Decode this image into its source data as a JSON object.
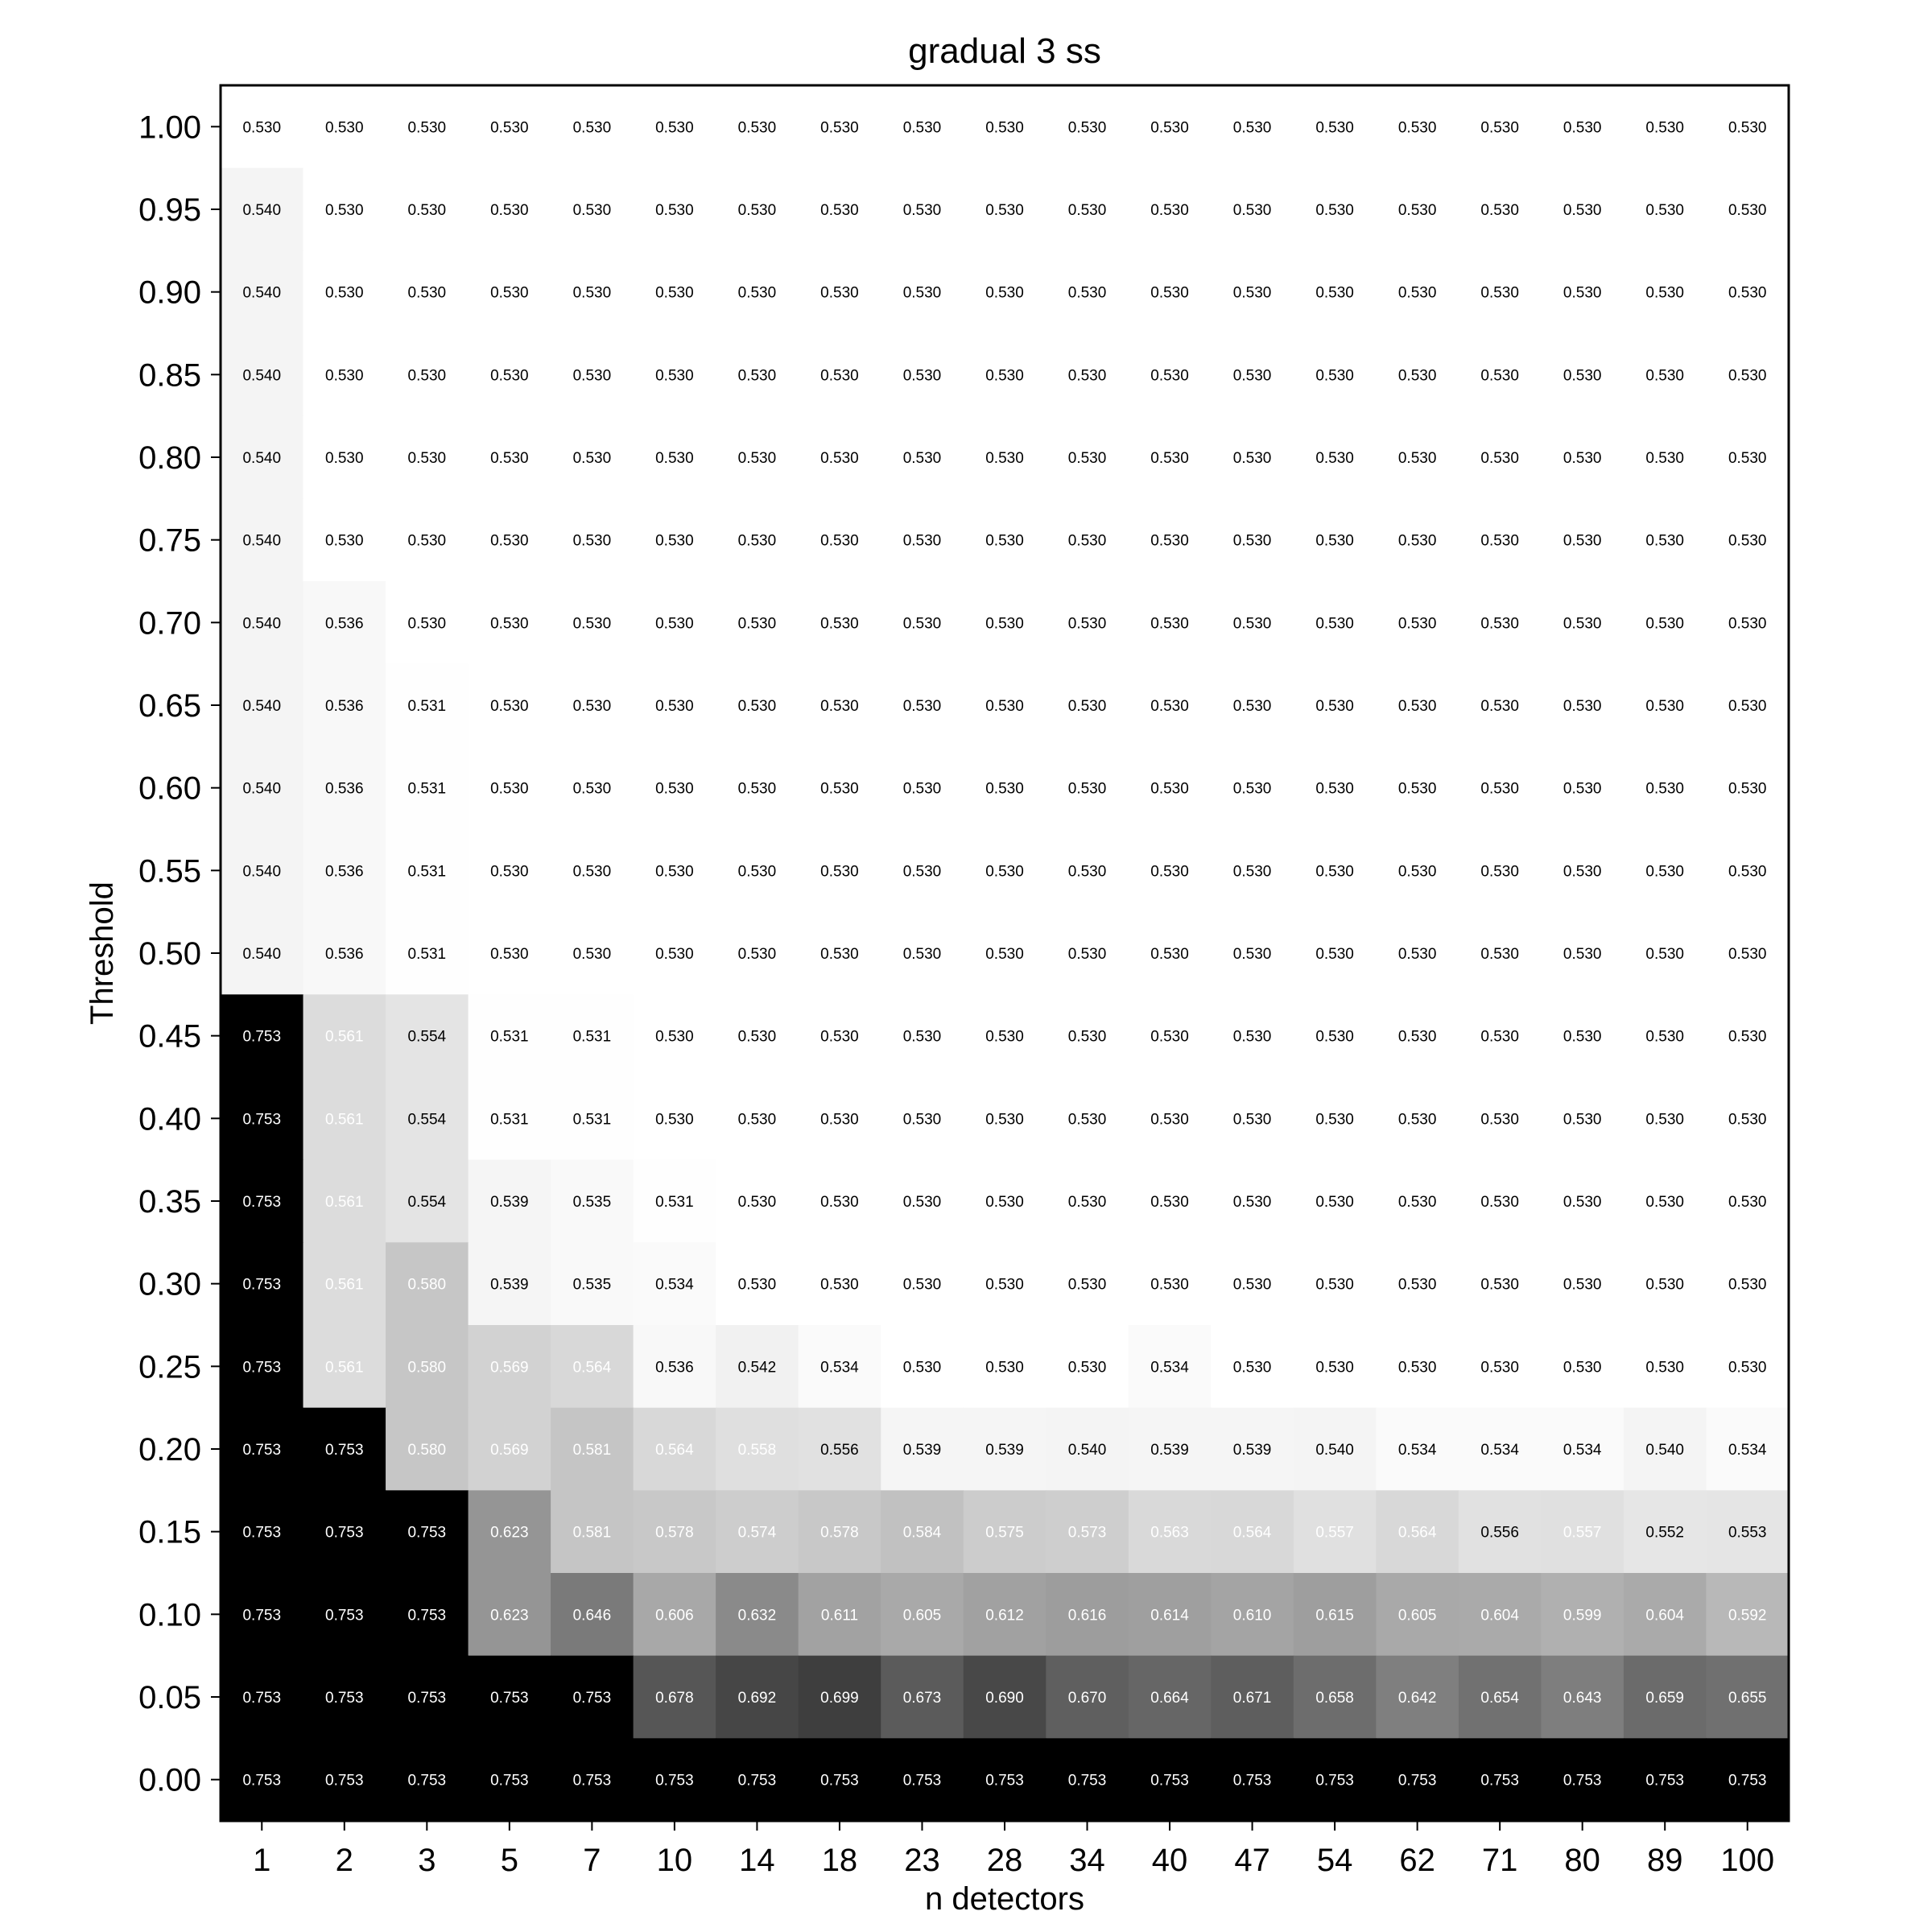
{
  "chart_data": {
    "type": "heatmap",
    "title": "gradual 3 ss",
    "xlabel": "n detectors",
    "ylabel": "Threshold",
    "x": [
      "1",
      "2",
      "3",
      "5",
      "7",
      "10",
      "14",
      "18",
      "23",
      "28",
      "34",
      "40",
      "47",
      "54",
      "62",
      "71",
      "80",
      "89",
      "100"
    ],
    "y": [
      "1.00",
      "0.95",
      "0.90",
      "0.85",
      "0.80",
      "0.75",
      "0.70",
      "0.65",
      "0.60",
      "0.55",
      "0.50",
      "0.45",
      "0.40",
      "0.35",
      "0.30",
      "0.25",
      "0.20",
      "0.15",
      "0.10",
      "0.05",
      "0.00"
    ],
    "values": [
      [
        0.53,
        0.53,
        0.53,
        0.53,
        0.53,
        0.53,
        0.53,
        0.53,
        0.53,
        0.53,
        0.53,
        0.53,
        0.53,
        0.53,
        0.53,
        0.53,
        0.53,
        0.53,
        0.53
      ],
      [
        0.54,
        0.53,
        0.53,
        0.53,
        0.53,
        0.53,
        0.53,
        0.53,
        0.53,
        0.53,
        0.53,
        0.53,
        0.53,
        0.53,
        0.53,
        0.53,
        0.53,
        0.53,
        0.53
      ],
      [
        0.54,
        0.53,
        0.53,
        0.53,
        0.53,
        0.53,
        0.53,
        0.53,
        0.53,
        0.53,
        0.53,
        0.53,
        0.53,
        0.53,
        0.53,
        0.53,
        0.53,
        0.53,
        0.53
      ],
      [
        0.54,
        0.53,
        0.53,
        0.53,
        0.53,
        0.53,
        0.53,
        0.53,
        0.53,
        0.53,
        0.53,
        0.53,
        0.53,
        0.53,
        0.53,
        0.53,
        0.53,
        0.53,
        0.53
      ],
      [
        0.54,
        0.53,
        0.53,
        0.53,
        0.53,
        0.53,
        0.53,
        0.53,
        0.53,
        0.53,
        0.53,
        0.53,
        0.53,
        0.53,
        0.53,
        0.53,
        0.53,
        0.53,
        0.53
      ],
      [
        0.54,
        0.53,
        0.53,
        0.53,
        0.53,
        0.53,
        0.53,
        0.53,
        0.53,
        0.53,
        0.53,
        0.53,
        0.53,
        0.53,
        0.53,
        0.53,
        0.53,
        0.53,
        0.53
      ],
      [
        0.54,
        0.536,
        0.53,
        0.53,
        0.53,
        0.53,
        0.53,
        0.53,
        0.53,
        0.53,
        0.53,
        0.53,
        0.53,
        0.53,
        0.53,
        0.53,
        0.53,
        0.53,
        0.53
      ],
      [
        0.54,
        0.536,
        0.531,
        0.53,
        0.53,
        0.53,
        0.53,
        0.53,
        0.53,
        0.53,
        0.53,
        0.53,
        0.53,
        0.53,
        0.53,
        0.53,
        0.53,
        0.53,
        0.53
      ],
      [
        0.54,
        0.536,
        0.531,
        0.53,
        0.53,
        0.53,
        0.53,
        0.53,
        0.53,
        0.53,
        0.53,
        0.53,
        0.53,
        0.53,
        0.53,
        0.53,
        0.53,
        0.53,
        0.53
      ],
      [
        0.54,
        0.536,
        0.531,
        0.53,
        0.53,
        0.53,
        0.53,
        0.53,
        0.53,
        0.53,
        0.53,
        0.53,
        0.53,
        0.53,
        0.53,
        0.53,
        0.53,
        0.53,
        0.53
      ],
      [
        0.54,
        0.536,
        0.531,
        0.53,
        0.53,
        0.53,
        0.53,
        0.53,
        0.53,
        0.53,
        0.53,
        0.53,
        0.53,
        0.53,
        0.53,
        0.53,
        0.53,
        0.53,
        0.53
      ],
      [
        0.753,
        0.561,
        0.554,
        0.531,
        0.531,
        0.53,
        0.53,
        0.53,
        0.53,
        0.53,
        0.53,
        0.53,
        0.53,
        0.53,
        0.53,
        0.53,
        0.53,
        0.53,
        0.53
      ],
      [
        0.753,
        0.561,
        0.554,
        0.531,
        0.531,
        0.53,
        0.53,
        0.53,
        0.53,
        0.53,
        0.53,
        0.53,
        0.53,
        0.53,
        0.53,
        0.53,
        0.53,
        0.53,
        0.53
      ],
      [
        0.753,
        0.561,
        0.554,
        0.539,
        0.535,
        0.531,
        0.53,
        0.53,
        0.53,
        0.53,
        0.53,
        0.53,
        0.53,
        0.53,
        0.53,
        0.53,
        0.53,
        0.53,
        0.53
      ],
      [
        0.753,
        0.561,
        0.58,
        0.539,
        0.535,
        0.534,
        0.53,
        0.53,
        0.53,
        0.53,
        0.53,
        0.53,
        0.53,
        0.53,
        0.53,
        0.53,
        0.53,
        0.53,
        0.53
      ],
      [
        0.753,
        0.561,
        0.58,
        0.569,
        0.564,
        0.536,
        0.542,
        0.534,
        0.53,
        0.53,
        0.53,
        0.534,
        0.53,
        0.53,
        0.53,
        0.53,
        0.53,
        0.53,
        0.53
      ],
      [
        0.753,
        0.753,
        0.58,
        0.569,
        0.581,
        0.564,
        0.558,
        0.556,
        0.539,
        0.539,
        0.54,
        0.539,
        0.539,
        0.54,
        0.534,
        0.534,
        0.534,
        0.54,
        0.534
      ],
      [
        0.753,
        0.753,
        0.753,
        0.623,
        0.581,
        0.578,
        0.574,
        0.578,
        0.584,
        0.575,
        0.573,
        0.563,
        0.564,
        0.557,
        0.564,
        0.556,
        0.557,
        0.552,
        0.553
      ],
      [
        0.753,
        0.753,
        0.753,
        0.623,
        0.646,
        0.606,
        0.632,
        0.611,
        0.605,
        0.612,
        0.616,
        0.614,
        0.61,
        0.615,
        0.605,
        0.604,
        0.599,
        0.604,
        0.592
      ],
      [
        0.753,
        0.753,
        0.753,
        0.753,
        0.753,
        0.678,
        0.692,
        0.699,
        0.673,
        0.69,
        0.67,
        0.664,
        0.671,
        0.658,
        0.642,
        0.654,
        0.643,
        0.659,
        0.655
      ],
      [
        0.753,
        0.753,
        0.753,
        0.753,
        0.753,
        0.753,
        0.753,
        0.753,
        0.753,
        0.753,
        0.753,
        0.753,
        0.753,
        0.753,
        0.753,
        0.753,
        0.753,
        0.753,
        0.753
      ]
    ],
    "labels": [
      [
        "0.530",
        "0.530",
        "0.530",
        "0.530",
        "0.530",
        "0.530",
        "0.530",
        "0.530",
        "0.530",
        "0.530",
        "0.530",
        "0.530",
        "0.530",
        "0.530",
        "0.530",
        "0.530",
        "0.530",
        "0.530",
        "0.530"
      ],
      [
        "0.540",
        "0.530",
        "0.530",
        "0.530",
        "0.530",
        "0.530",
        "0.530",
        "0.530",
        "0.530",
        "0.530",
        "0.530",
        "0.530",
        "0.530",
        "0.530",
        "0.530",
        "0.530",
        "0.530",
        "0.530",
        "0.530"
      ],
      [
        "0.540",
        "0.530",
        "0.530",
        "0.530",
        "0.530",
        "0.530",
        "0.530",
        "0.530",
        "0.530",
        "0.530",
        "0.530",
        "0.530",
        "0.530",
        "0.530",
        "0.530",
        "0.530",
        "0.530",
        "0.530",
        "0.530"
      ],
      [
        "0.540",
        "0.530",
        "0.530",
        "0.530",
        "0.530",
        "0.530",
        "0.530",
        "0.530",
        "0.530",
        "0.530",
        "0.530",
        "0.530",
        "0.530",
        "0.530",
        "0.530",
        "0.530",
        "0.530",
        "0.530",
        "0.530"
      ],
      [
        "0.540",
        "0.530",
        "0.530",
        "0.530",
        "0.530",
        "0.530",
        "0.530",
        "0.530",
        "0.530",
        "0.530",
        "0.530",
        "0.530",
        "0.530",
        "0.530",
        "0.530",
        "0.530",
        "0.530",
        "0.530",
        "0.530"
      ],
      [
        "0.540",
        "0.530",
        "0.530",
        "0.530",
        "0.530",
        "0.530",
        "0.530",
        "0.530",
        "0.530",
        "0.530",
        "0.530",
        "0.530",
        "0.530",
        "0.530",
        "0.530",
        "0.530",
        "0.530",
        "0.530",
        "0.530"
      ],
      [
        "0.540",
        "0.536",
        "0.530",
        "0.530",
        "0.530",
        "0.530",
        "0.530",
        "0.530",
        "0.530",
        "0.530",
        "0.530",
        "0.530",
        "0.530",
        "0.530",
        "0.530",
        "0.530",
        "0.530",
        "0.530",
        "0.530"
      ],
      [
        "0.540",
        "0.536",
        "0.531",
        "0.530",
        "0.530",
        "0.530",
        "0.530",
        "0.530",
        "0.530",
        "0.530",
        "0.530",
        "0.530",
        "0.530",
        "0.530",
        "0.530",
        "0.530",
        "0.530",
        "0.530",
        "0.530"
      ],
      [
        "0.540",
        "0.536",
        "0.531",
        "0.530",
        "0.530",
        "0.530",
        "0.530",
        "0.530",
        "0.530",
        "0.530",
        "0.530",
        "0.530",
        "0.530",
        "0.530",
        "0.530",
        "0.530",
        "0.530",
        "0.530",
        "0.530"
      ],
      [
        "0.540",
        "0.536",
        "0.531",
        "0.530",
        "0.530",
        "0.530",
        "0.530",
        "0.530",
        "0.530",
        "0.530",
        "0.530",
        "0.530",
        "0.530",
        "0.530",
        "0.530",
        "0.530",
        "0.530",
        "0.530",
        "0.530"
      ],
      [
        "0.540",
        "0.536",
        "0.531",
        "0.530",
        "0.530",
        "0.530",
        "0.530",
        "0.530",
        "0.530",
        "0.530",
        "0.530",
        "0.530",
        "0.530",
        "0.530",
        "0.530",
        "0.530",
        "0.530",
        "0.530",
        "0.530"
      ],
      [
        "0.753",
        "0.561",
        "0.554",
        "0.531",
        "0.531",
        "0.530",
        "0.530",
        "0.530",
        "0.530",
        "0.530",
        "0.530",
        "0.530",
        "0.530",
        "0.530",
        "0.530",
        "0.530",
        "0.530",
        "0.530",
        "0.530"
      ],
      [
        "0.753",
        "0.561",
        "0.554",
        "0.531",
        "0.531",
        "0.530",
        "0.530",
        "0.530",
        "0.530",
        "0.530",
        "0.530",
        "0.530",
        "0.530",
        "0.530",
        "0.530",
        "0.530",
        "0.530",
        "0.530",
        "0.530"
      ],
      [
        "0.753",
        "0.561",
        "0.554",
        "0.539",
        "0.535",
        "0.531",
        "0.530",
        "0.530",
        "0.530",
        "0.530",
        "0.530",
        "0.530",
        "0.530",
        "0.530",
        "0.530",
        "0.530",
        "0.530",
        "0.530",
        "0.530"
      ],
      [
        "0.753",
        "0.561",
        "0.580",
        "0.539",
        "0.535",
        "0.534",
        "0.530",
        "0.530",
        "0.530",
        "0.530",
        "0.530",
        "0.530",
        "0.530",
        "0.530",
        "0.530",
        "0.530",
        "0.530",
        "0.530",
        "0.530"
      ],
      [
        "0.753",
        "0.561",
        "0.580",
        "0.569",
        "0.564",
        "0.536",
        "0.542",
        "0.534",
        "0.530",
        "0.530",
        "0.530",
        "0.534",
        "0.530",
        "0.530",
        "0.530",
        "0.530",
        "0.530",
        "0.530",
        "0.530"
      ],
      [
        "0.753",
        "0.753",
        "0.580",
        "0.569",
        "0.581",
        "0.564",
        "0.558",
        "0.556",
        "0.539",
        "0.539",
        "0.540",
        "0.539",
        "0.539",
        "0.540",
        "0.534",
        "0.534",
        "0.534",
        "0.540",
        "0.534"
      ],
      [
        "0.753",
        "0.753",
        "0.753",
        "0.623",
        "0.581",
        "0.578",
        "0.574",
        "0.578",
        "0.584",
        "0.575",
        "0.573",
        "0.563",
        "0.564",
        "0.557",
        "0.564",
        "0.556",
        "0.557",
        "0.552",
        "0.553"
      ],
      [
        "0.753",
        "0.753",
        "0.753",
        "0.623",
        "0.646",
        "0.606",
        "0.632",
        "0.611",
        "0.605",
        "0.612",
        "0.616",
        "0.614",
        "0.610",
        "0.615",
        "0.605",
        "0.604",
        "0.599",
        "0.604",
        "0.592"
      ],
      [
        "0.753",
        "0.753",
        "0.753",
        "0.753",
        "0.753",
        "0.678",
        "0.692",
        "0.699",
        "0.673",
        "0.690",
        "0.670",
        "0.664",
        "0.671",
        "0.658",
        "0.642",
        "0.654",
        "0.643",
        "0.659",
        "0.655"
      ],
      [
        "0.753",
        "0.753",
        "0.753",
        "0.753",
        "0.753",
        "0.753",
        "0.753",
        "0.753",
        "0.753",
        "0.753",
        "0.753",
        "0.753",
        "0.753",
        "0.753",
        "0.753",
        "0.753",
        "0.753",
        "0.753",
        "0.753"
      ]
    ],
    "colormap": "Greys",
    "vmin": 0.53,
    "vmax": 0.753,
    "colorbar": false,
    "grid": false
  }
}
